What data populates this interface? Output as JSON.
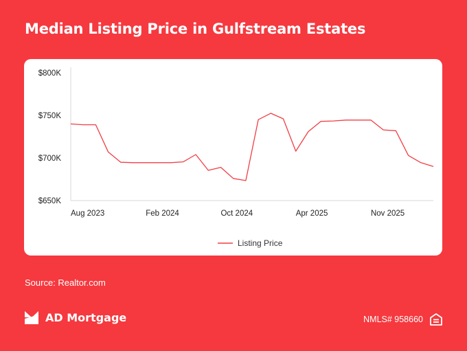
{
  "header": {
    "title": "Median Listing Price in Gulfstream Estates"
  },
  "chart_data": {
    "type": "line",
    "title": "Median Listing Price in Gulfstream Estates",
    "xlabel": "",
    "ylabel": "",
    "ylim": [
      650000,
      800000
    ],
    "y_ticks": [
      650000,
      700000,
      750000,
      800000
    ],
    "y_tick_labels": [
      "$650K",
      "$700K",
      "$750K",
      "$800K"
    ],
    "x_tick_labels": [
      "Aug 2023",
      "Feb 2024",
      "Oct 2024",
      "Apr 2025",
      "Nov 2025"
    ],
    "x_tick_index": [
      0,
      6,
      12,
      18,
      24
    ],
    "grid": false,
    "legend_position": "bottom",
    "series": [
      {
        "name": "Listing Price",
        "color": "#f03e44",
        "values": [
          740000,
          739000,
          739000,
          707000,
          695000,
          694500,
          694500,
          694500,
          694500,
          695500,
          704000,
          685500,
          689000,
          676000,
          673500,
          745000,
          752500,
          746000,
          708000,
          731000,
          743000,
          743500,
          744500,
          744500,
          744500,
          733000,
          732000,
          703000,
          694500,
          690000
        ]
      }
    ]
  },
  "source": "Source: Realtor.com",
  "footer": {
    "brand_name": "AD Mortgage",
    "nmls": "NMLS# 958660",
    "logo_icon": "ad-mortgage-logo-icon",
    "eho_icon": "equal-housing-icon"
  }
}
